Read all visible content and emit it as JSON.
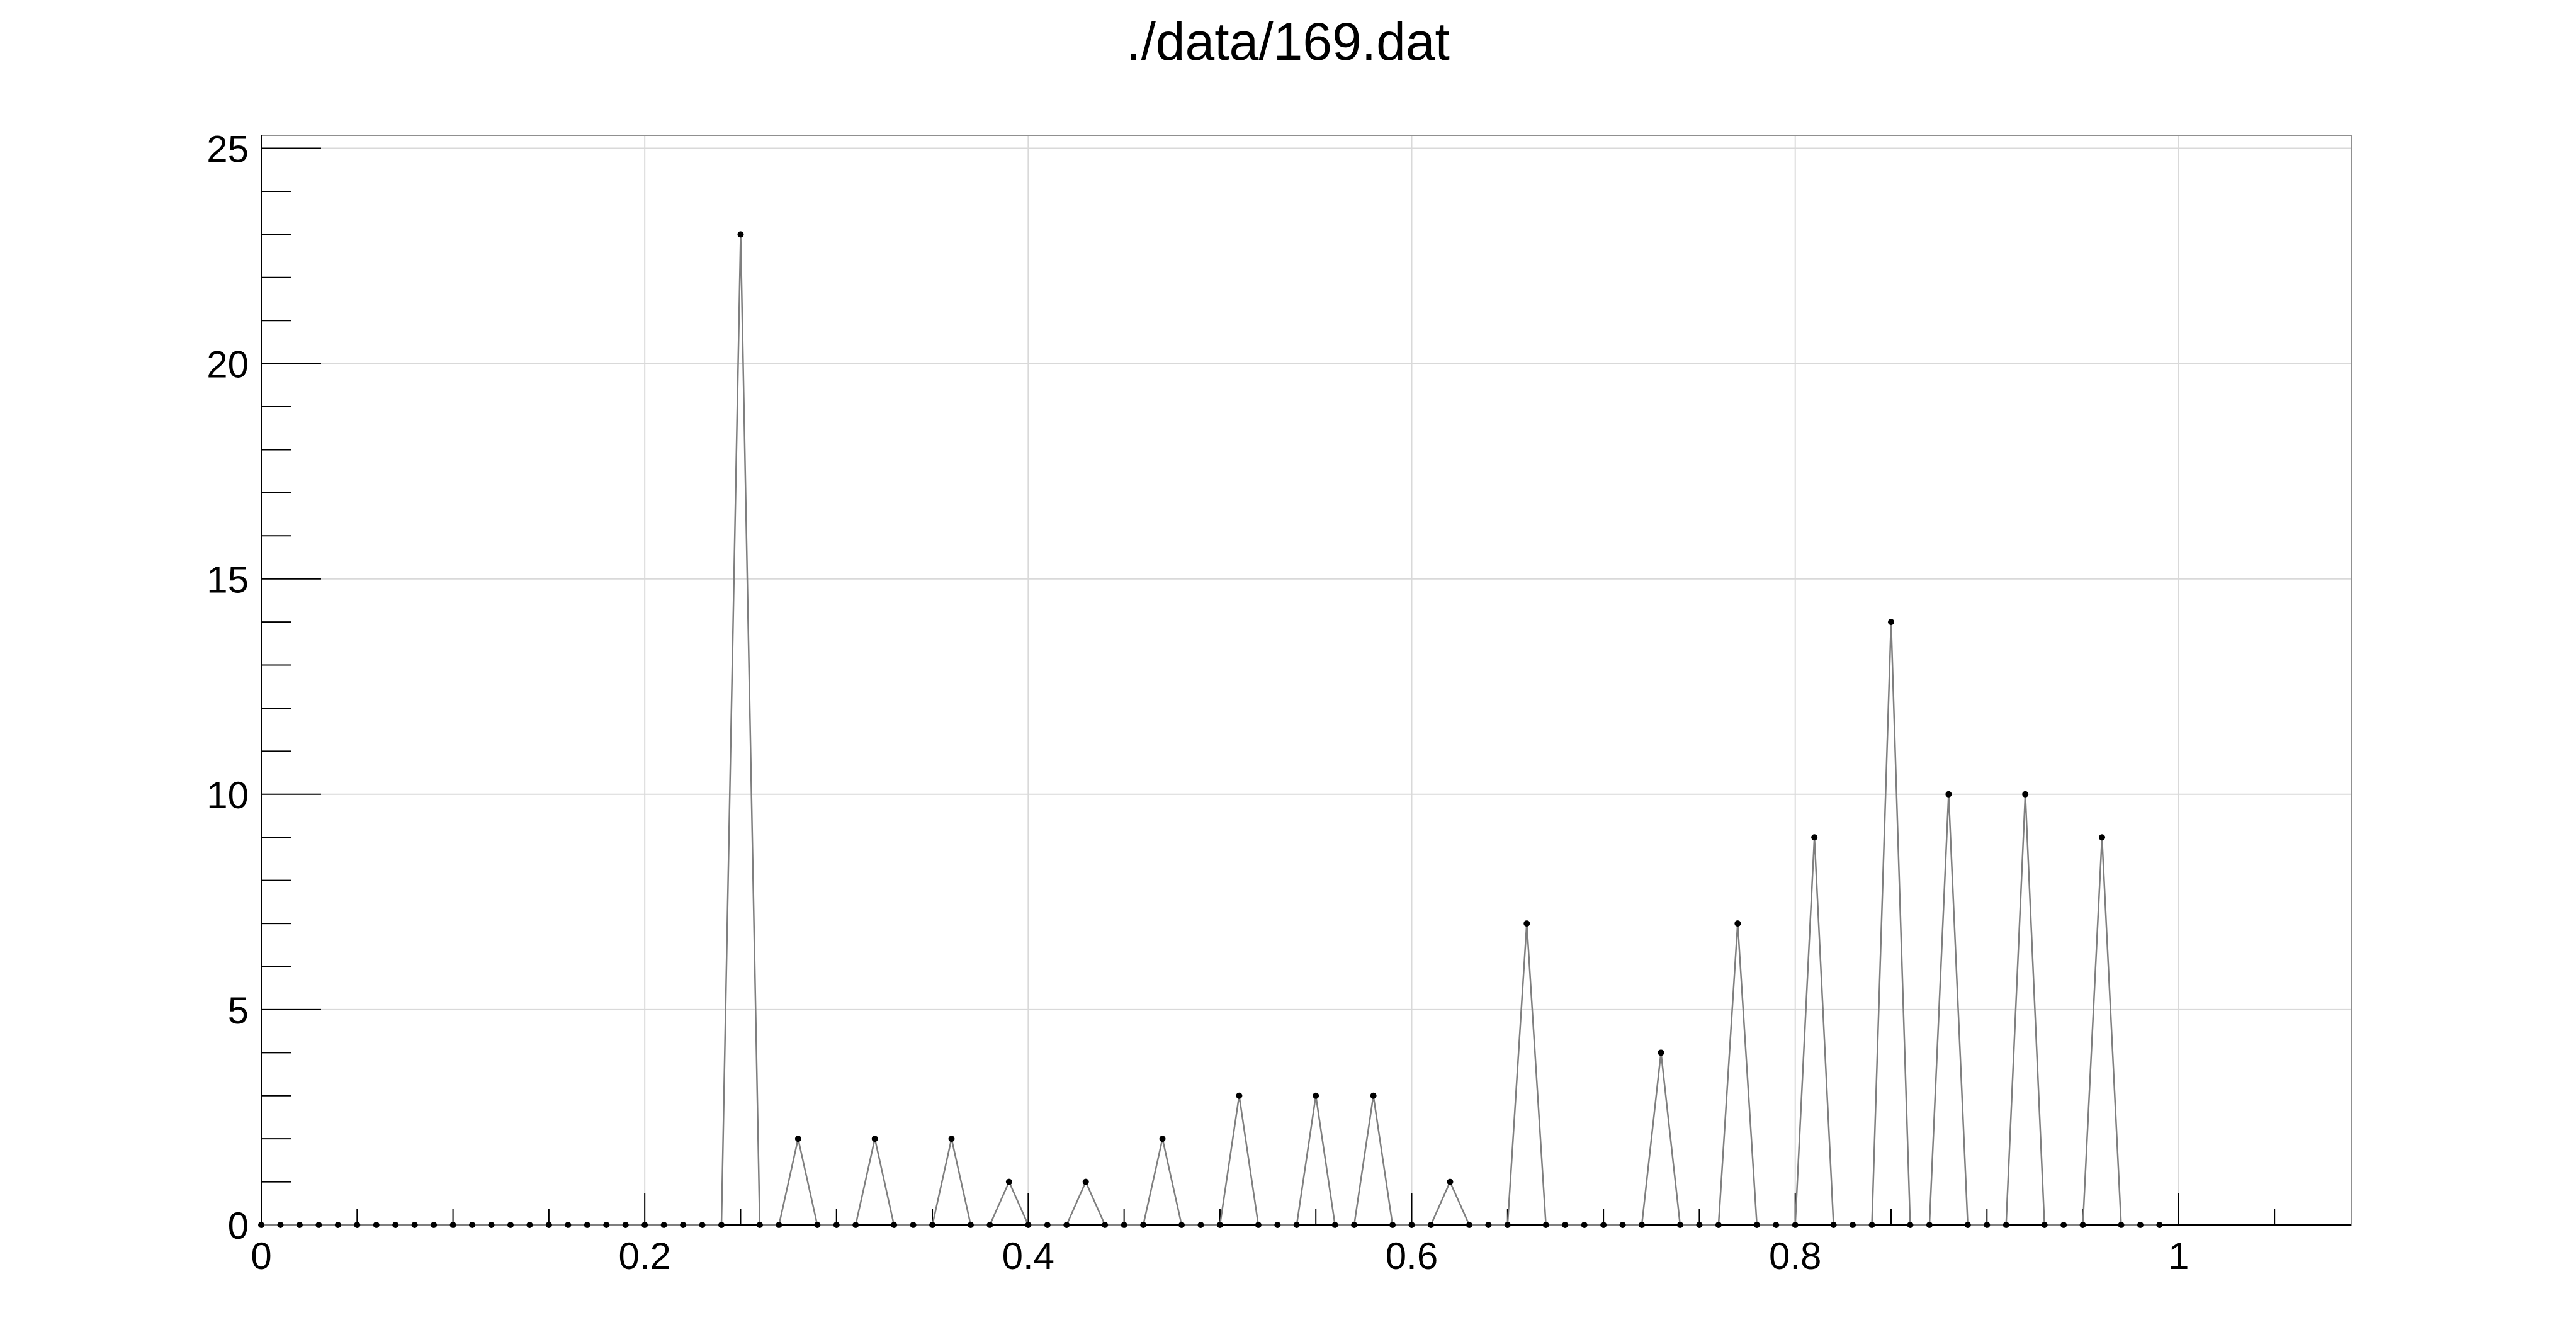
{
  "chart_data": {
    "type": "line",
    "title": "./data/169.dat",
    "xlabel": "",
    "ylabel": "",
    "xlim": [
      0,
      1.09
    ],
    "ylim": [
      0,
      25.3
    ],
    "grid": true,
    "x_ticks": [
      {
        "value": 0,
        "label": "0"
      },
      {
        "value": 0.2,
        "label": "0.2"
      },
      {
        "value": 0.4,
        "label": "0.4"
      },
      {
        "value": 0.6,
        "label": "0.6"
      },
      {
        "value": 0.8,
        "label": "0.8"
      },
      {
        "value": 1.0,
        "label": "1"
      }
    ],
    "y_ticks": [
      {
        "value": 0,
        "label": "0"
      },
      {
        "value": 5,
        "label": "5"
      },
      {
        "value": 10,
        "label": "10"
      },
      {
        "value": 15,
        "label": "15"
      },
      {
        "value": 20,
        "label": "20"
      },
      {
        "value": 25,
        "label": "25"
      }
    ],
    "series": [
      {
        "x": [
          0.0,
          0.01,
          0.02,
          0.03,
          0.04,
          0.05,
          0.06,
          0.07,
          0.08,
          0.09,
          0.1,
          0.11,
          0.12,
          0.13,
          0.14,
          0.15,
          0.16,
          0.17,
          0.18,
          0.19,
          0.2,
          0.21,
          0.22,
          0.23,
          0.24,
          0.25,
          0.26,
          0.27,
          0.28,
          0.29,
          0.3,
          0.31,
          0.32,
          0.33,
          0.34,
          0.35,
          0.36,
          0.37,
          0.38,
          0.39,
          0.4,
          0.41,
          0.42,
          0.43,
          0.44,
          0.45,
          0.46,
          0.47,
          0.48,
          0.49,
          0.5,
          0.51,
          0.52,
          0.53,
          0.54,
          0.55,
          0.56,
          0.57,
          0.58,
          0.59,
          0.6,
          0.61,
          0.62,
          0.63,
          0.64,
          0.65,
          0.66,
          0.67,
          0.68,
          0.69,
          0.7,
          0.71,
          0.72,
          0.73,
          0.74,
          0.75,
          0.76,
          0.77,
          0.78,
          0.79,
          0.8,
          0.81,
          0.82,
          0.83,
          0.84,
          0.85,
          0.86,
          0.87,
          0.88,
          0.89,
          0.9,
          0.91,
          0.92,
          0.93,
          0.94,
          0.95,
          0.96,
          0.97,
          0.98,
          0.99
        ],
        "y": [
          0,
          0,
          0,
          0,
          0,
          0,
          0,
          0,
          0,
          0,
          0,
          0,
          0,
          0,
          0,
          0,
          0,
          0,
          0,
          0,
          0,
          0,
          0,
          0,
          0,
          23,
          0,
          0,
          2,
          0,
          0,
          0,
          2,
          0,
          0,
          0,
          2,
          0,
          0,
          1,
          0,
          0,
          0,
          1,
          0,
          0,
          0,
          2,
          0,
          0,
          0,
          3,
          0,
          0,
          0,
          3,
          0,
          0,
          3,
          0,
          0,
          0,
          1,
          0,
          0,
          0,
          7,
          0,
          0,
          0,
          0,
          0,
          0,
          4,
          0,
          0,
          0,
          7,
          0,
          0,
          0,
          9,
          0,
          0,
          0,
          14,
          0,
          0,
          10,
          0,
          0,
          0,
          10,
          0,
          0,
          0,
          9,
          0,
          0,
          0
        ]
      }
    ],
    "colors": {
      "line": "#7f7f7f",
      "marker": "#000000",
      "grid": "#d9d9d9",
      "frame": "#909090",
      "axis": "#000000"
    }
  }
}
